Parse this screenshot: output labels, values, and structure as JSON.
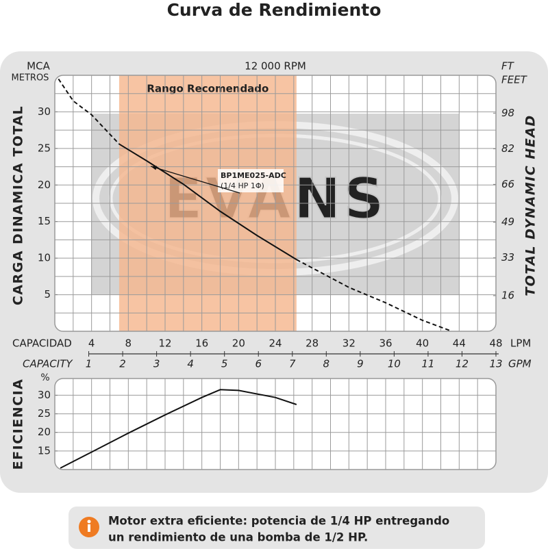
{
  "title": "Curva de Rendimiento",
  "chart_data": [
    {
      "type": "line",
      "top_label": "12 000 RPM",
      "y_label": "CARGA DINAMICA TOTAL",
      "y_unit_lines": [
        "MCA",
        "METROS"
      ],
      "y2_label": "TOTAL DYNAMIC HEAD",
      "y2_unit_lines": [
        "FT",
        "FEET"
      ],
      "x_label": "CAPACIDAD",
      "x_unit": "LPM",
      "x2_label": "CAPACITY",
      "x2_unit": "GPM",
      "xlim": [
        0,
        48
      ],
      "xticks": [
        4,
        8,
        12,
        16,
        20,
        24,
        28,
        32,
        36,
        40,
        44,
        48
      ],
      "x2lim": [
        0,
        13
      ],
      "x2ticks": [
        1,
        2,
        3,
        4,
        5,
        6,
        7,
        8,
        9,
        10,
        11,
        12,
        13
      ],
      "ylim": [
        0,
        35
      ],
      "yticks": [
        5,
        10,
        15,
        20,
        25,
        30
      ],
      "y2lim": [
        0,
        115
      ],
      "y2ticks": [
        16,
        33,
        49,
        66,
        82,
        98
      ],
      "grid": true,
      "grid_step": {
        "x": 2,
        "y": 2.5
      },
      "watermark": "EVANS",
      "recommended_range": {
        "label": "Rango Recomendado",
        "x": [
          7,
          26.3
        ],
        "color": "#f5b58c"
      },
      "series": [
        {
          "name": "BP1ME025-ADC",
          "color": "#111111",
          "x": [
            0.4,
            2,
            4,
            7,
            10,
            14,
            18,
            22,
            26.3,
            32,
            36,
            40,
            43
          ],
          "values": [
            34.5,
            31.5,
            29.6,
            25.6,
            23.3,
            20.1,
            16.4,
            13.1,
            9.8,
            6.0,
            3.9,
            1.5,
            0.1
          ]
        }
      ],
      "annotation": "(1/4 HP 1Φ)"
    },
    {
      "type": "line",
      "y_label": "EFICIENCIA",
      "y_unit": "%",
      "xlim": [
        0,
        48
      ],
      "ylim": [
        10,
        34.5
      ],
      "yticks": [
        15,
        20,
        25,
        30
      ],
      "grid": true,
      "grid_step": {
        "x": 2,
        "y": 5
      },
      "series": [
        {
          "color": "#111111",
          "x": [
            0.6,
            4,
            8,
            12,
            16,
            18,
            20,
            24,
            26.3
          ],
          "values": [
            10.4,
            14.7,
            19.8,
            24.7,
            29.4,
            31.5,
            31.3,
            29.4,
            27.5
          ]
        }
      ]
    }
  ],
  "note": [
    "Motor extra eficiente: potencia de 1/4 HP entregando",
    "un rendimiento de una bomba de 1/2 HP."
  ]
}
